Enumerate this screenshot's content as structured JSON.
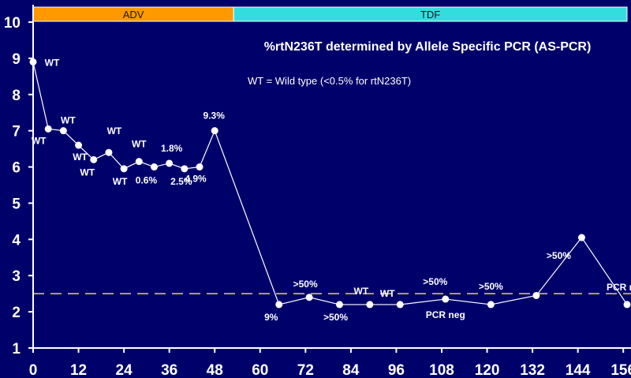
{
  "chart_data": {
    "type": "line",
    "title": "%rtN236T determined by Allele Specific PCR (AS-PCR)",
    "subtitle": "WT = Wild type (<0.5% for rtN236T)",
    "xlabel": "",
    "ylabel": "",
    "xlim": [
      0,
      157
    ],
    "ylim": [
      1,
      10
    ],
    "x_ticks": [
      "0",
      "12",
      "24",
      "36",
      "48",
      "60",
      "72",
      "84",
      "96",
      "108",
      "120",
      "132",
      "144",
      "156"
    ],
    "y_ticks": [
      "1",
      "2",
      "3",
      "4",
      "5",
      "6",
      "7",
      "8",
      "9",
      "10"
    ],
    "phases": [
      {
        "label": "ADV",
        "start": 0,
        "end": 53,
        "color": "#ff9900"
      },
      {
        "label": "TDF",
        "start": 53,
        "end": 157,
        "color": "#33dddd"
      }
    ],
    "reference_line": {
      "y": 2.5,
      "color": "#dddd44"
    },
    "series": [
      {
        "x": [
          0,
          4,
          8,
          12,
          16,
          20,
          24,
          28,
          32,
          36,
          40,
          44,
          48,
          65,
          73,
          81,
          89,
          97,
          109,
          121,
          133,
          145,
          157
        ],
        "y": [
          8.9,
          7.05,
          7.0,
          6.6,
          6.2,
          6.4,
          5.95,
          6.15,
          6.0,
          6.1,
          5.95,
          6.0,
          7.0,
          2.2,
          2.4,
          2.2,
          2.2,
          2.2,
          2.35,
          2.2,
          2.45,
          4.05,
          2.2
        ]
      }
    ],
    "annotations": [
      {
        "text": "WT",
        "x": 0,
        "y": 8.9
      },
      {
        "text": "WT",
        "x": 4,
        "y": 7.05
      },
      {
        "text": "WT",
        "x": 8,
        "y": 7.0
      },
      {
        "text": "WT",
        "x": 12,
        "y": 6.6
      },
      {
        "text": "WT",
        "x": 16,
        "y": 6.2
      },
      {
        "text": "WT",
        "x": 20,
        "y": 6.4
      },
      {
        "text": "WT",
        "x": 24,
        "y": 5.95
      },
      {
        "text": "WT",
        "x": 28,
        "y": 6.15
      },
      {
        "text": "0.6%",
        "x": 32,
        "y": 6.0
      },
      {
        "text": "1.8%",
        "x": 36,
        "y": 6.1
      },
      {
        "text": "2.5%",
        "x": 40,
        "y": 5.95
      },
      {
        "text": "4.9%",
        "x": 44,
        "y": 6.0
      },
      {
        "text": "9.3%",
        "x": 48,
        "y": 7.0
      },
      {
        "text": "9%",
        "x": 65,
        "y": 2.2
      },
      {
        "text": ">50%",
        "x": 73,
        "y": 2.4
      },
      {
        "text": ">50%",
        "x": 81,
        "y": 2.2
      },
      {
        "text": "WT",
        "x": 89,
        "y": 2.2
      },
      {
        "text": "WT",
        "x": 97,
        "y": 2.2
      },
      {
        "text": ">50%",
        "x": 109,
        "y": 2.35
      },
      {
        "text": "PCR neg",
        "x": 109,
        "y": 2.35
      },
      {
        "text": ">50%",
        "x": 121,
        "y": 2.2
      },
      {
        "text": ">50%",
        "x": 145,
        "y": 4.05
      },
      {
        "text": "PCR neg",
        "x": 157,
        "y": 2.2
      }
    ]
  }
}
